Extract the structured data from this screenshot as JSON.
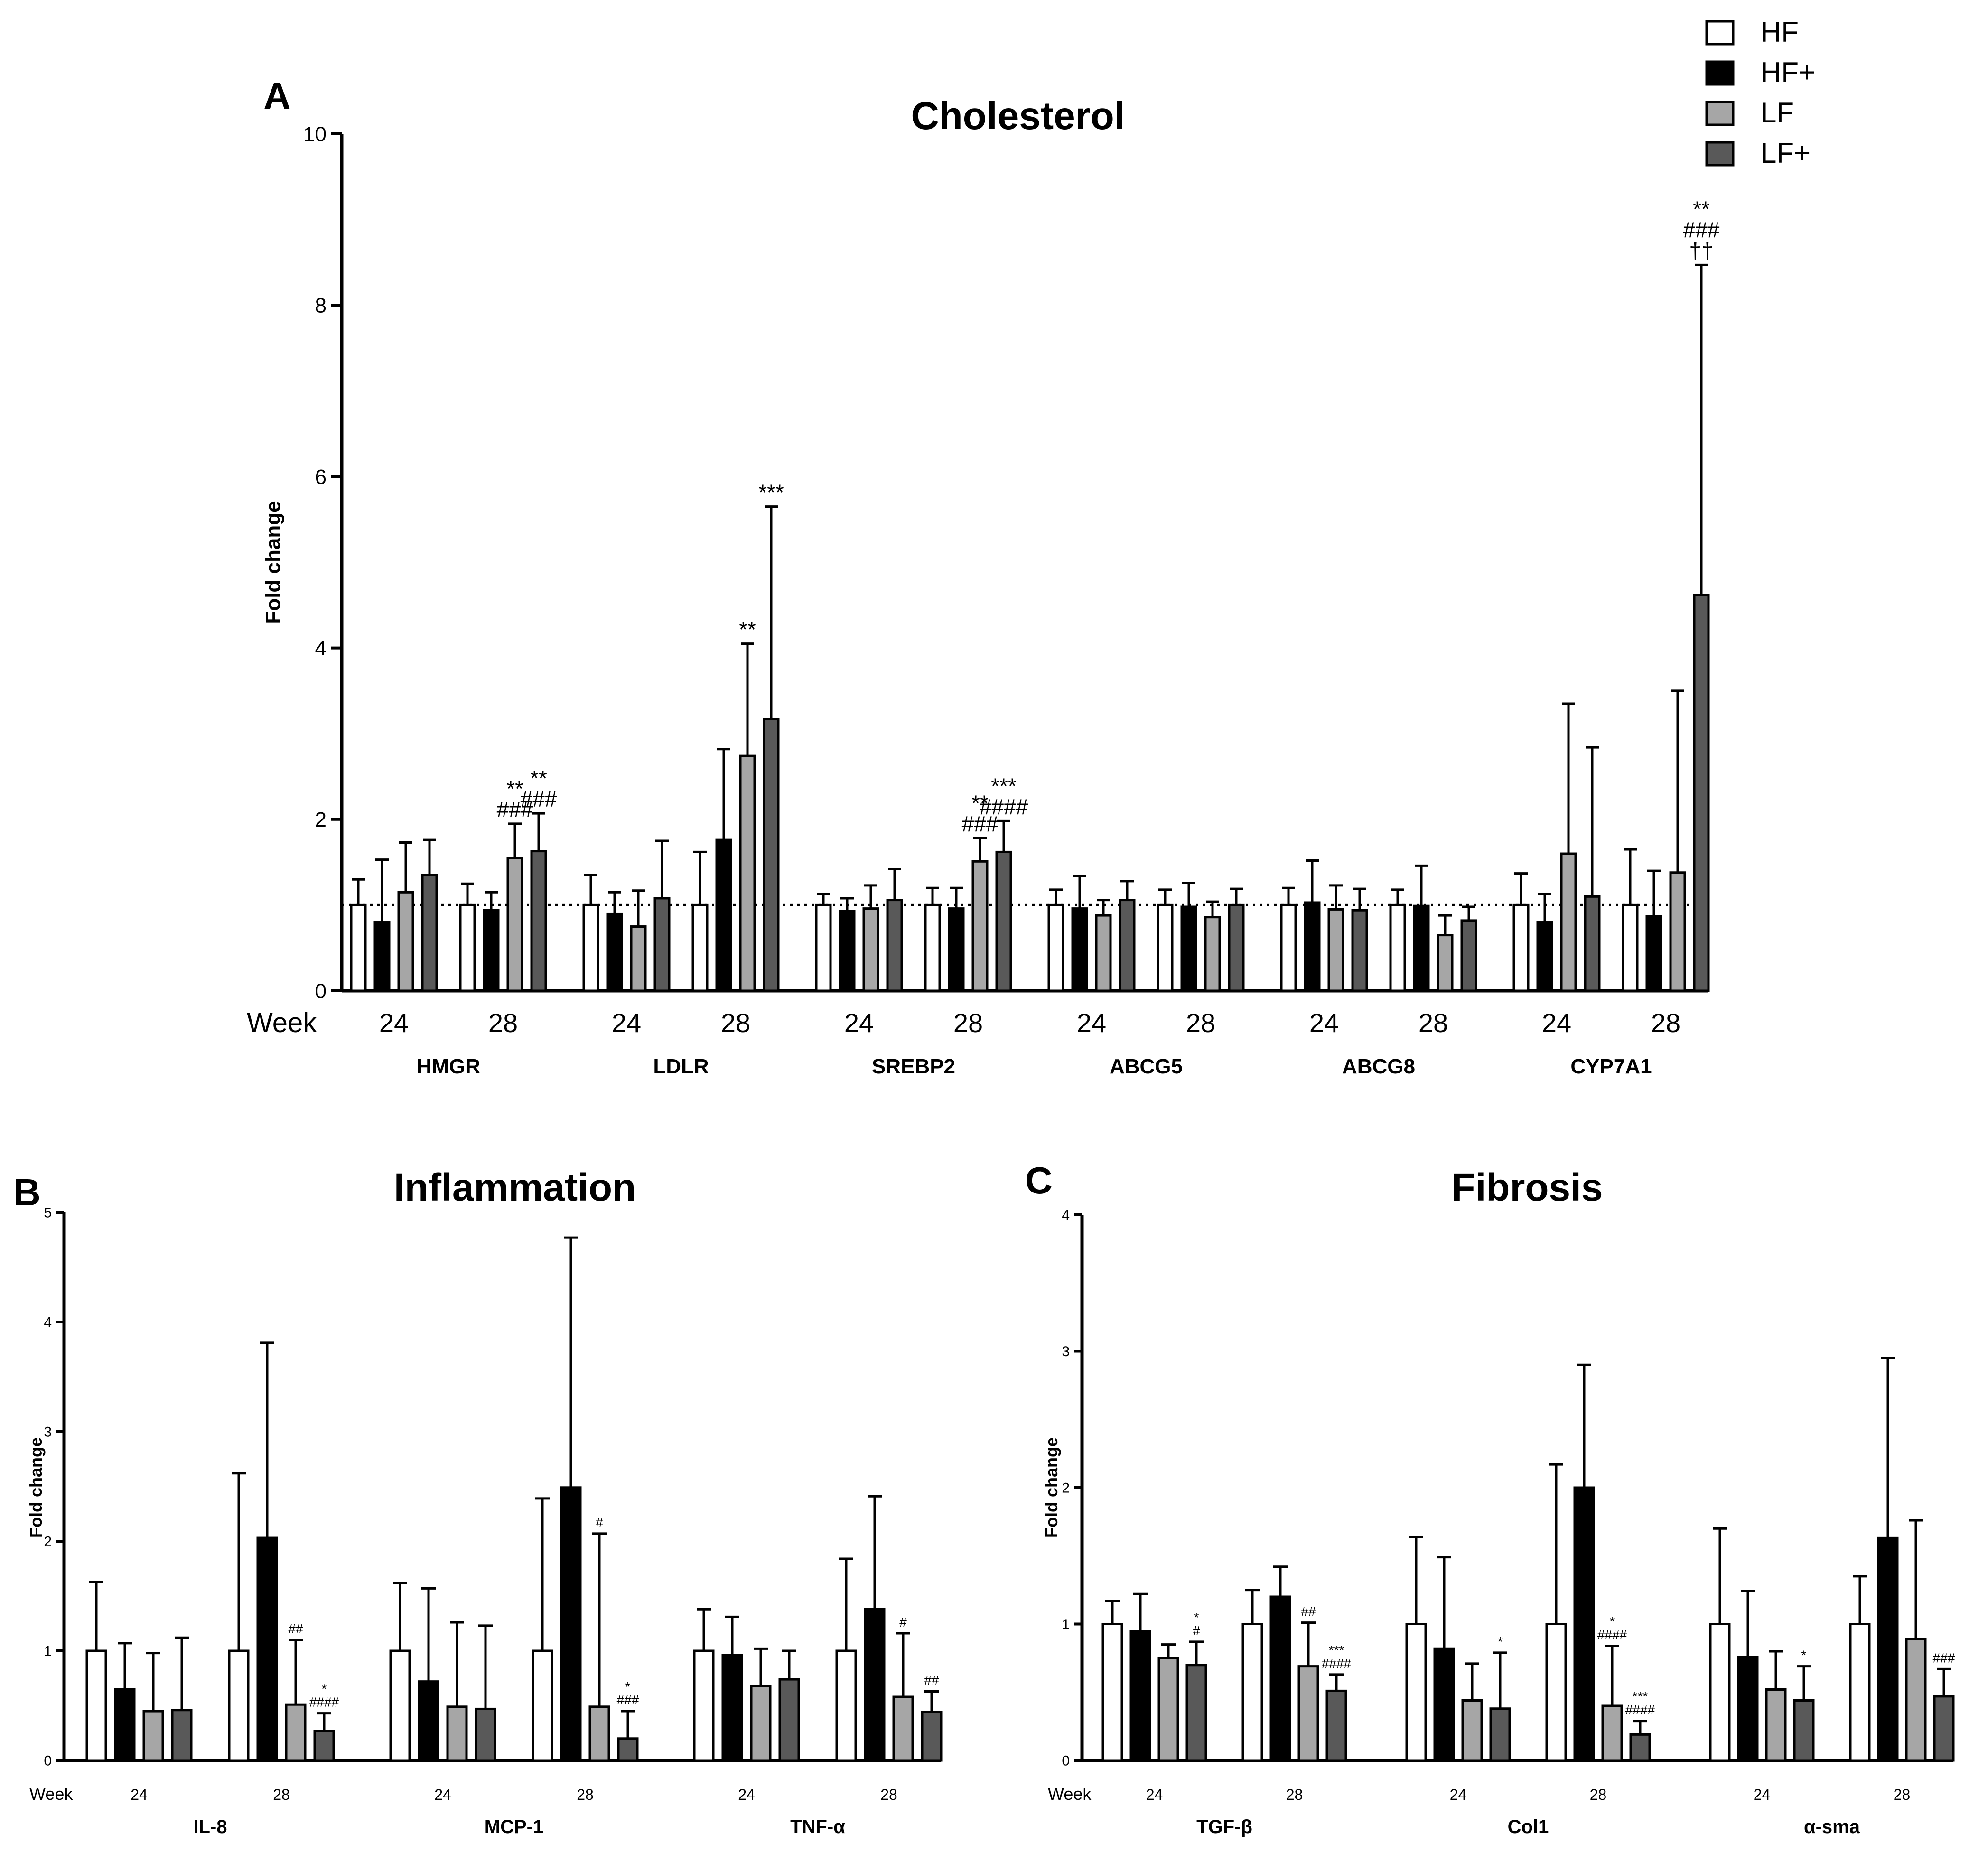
{
  "colors": {
    "HF": "#ffffff",
    "HF+": "#000000",
    "LF": "#a6a6a6",
    "LF+": "#595959"
  },
  "legend": [
    "HF",
    "HF+",
    "LF",
    "LF+"
  ],
  "chart_data": [
    {
      "panel": "A",
      "type": "bar",
      "title": "Cholesterol",
      "ylabel": "Fold change",
      "xlabel": "Week",
      "ylim": [
        0,
        10
      ],
      "yticks": [
        0,
        2,
        4,
        6,
        8,
        10
      ],
      "reference_line": 1,
      "series_names": [
        "HF",
        "HF+",
        "LF",
        "LF+"
      ],
      "genes": [
        {
          "name": "HMGR",
          "groups": [
            {
              "week": "24",
              "values": [
                1.0,
                0.8,
                1.15,
                1.35
              ],
              "errors": [
                1.3,
                1.53,
                1.73,
                1.76
              ],
              "sig": [
                "",
                "",
                "",
                ""
              ]
            },
            {
              "week": "28",
              "values": [
                1.0,
                0.94,
                1.55,
                1.63
              ],
              "errors": [
                1.25,
                1.15,
                1.95,
                2.07
              ],
              "sig": [
                "",
                "",
                "**\n###",
                "**\n###"
              ]
            }
          ]
        },
        {
          "name": "LDLR",
          "groups": [
            {
              "week": "24",
              "values": [
                1.0,
                0.9,
                0.75,
                1.08
              ],
              "errors": [
                1.35,
                1.15,
                1.17,
                1.75
              ],
              "sig": [
                "",
                "",
                "",
                ""
              ]
            },
            {
              "week": "28",
              "values": [
                1.0,
                1.76,
                2.74,
                3.17
              ],
              "errors": [
                1.62,
                2.82,
                4.05,
                5.65
              ],
              "sig": [
                "",
                "",
                "**",
                "***"
              ]
            }
          ]
        },
        {
          "name": "SREBP2",
          "groups": [
            {
              "week": "24",
              "values": [
                1.0,
                0.93,
                0.96,
                1.06
              ],
              "errors": [
                1.13,
                1.08,
                1.23,
                1.42
              ],
              "sig": [
                "",
                "",
                "",
                ""
              ]
            },
            {
              "week": "28",
              "values": [
                1.0,
                0.96,
                1.51,
                1.62
              ],
              "errors": [
                1.2,
                1.2,
                1.78,
                1.98
              ],
              "sig": [
                "",
                "",
                "**\n###",
                "***\n####"
              ]
            }
          ]
        },
        {
          "name": "ABCG5",
          "groups": [
            {
              "week": "24",
              "values": [
                1.0,
                0.96,
                0.88,
                1.06
              ],
              "errors": [
                1.18,
                1.34,
                1.06,
                1.28
              ],
              "sig": [
                "",
                "",
                "",
                ""
              ]
            },
            {
              "week": "28",
              "values": [
                1.0,
                0.98,
                0.86,
                1.0
              ],
              "errors": [
                1.18,
                1.26,
                1.04,
                1.19
              ],
              "sig": [
                "",
                "",
                "",
                ""
              ]
            }
          ]
        },
        {
          "name": "ABCG8",
          "groups": [
            {
              "week": "24",
              "values": [
                1.0,
                1.03,
                0.95,
                0.94
              ],
              "errors": [
                1.2,
                1.52,
                1.23,
                1.19
              ],
              "sig": [
                "",
                "",
                "",
                ""
              ]
            },
            {
              "week": "28",
              "values": [
                1.0,
                0.99,
                0.65,
                0.82
              ],
              "errors": [
                1.18,
                1.46,
                0.88,
                0.98
              ],
              "sig": [
                "",
                "",
                "",
                ""
              ]
            }
          ]
        },
        {
          "name": "CYP7A1",
          "groups": [
            {
              "week": "24",
              "values": [
                1.0,
                0.8,
                1.6,
                1.1
              ],
              "errors": [
                1.37,
                1.13,
                3.35,
                2.84
              ],
              "sig": [
                "",
                "",
                "",
                ""
              ]
            },
            {
              "week": "28",
              "values": [
                1.0,
                0.87,
                1.38,
                4.62
              ],
              "errors": [
                1.65,
                1.4,
                3.5,
                8.47
              ],
              "sig": [
                "",
                "",
                "",
                "**\n###\n††"
              ]
            }
          ]
        }
      ]
    },
    {
      "panel": "B",
      "type": "bar",
      "title": "Inflammation",
      "ylabel": "Fold change",
      "xlabel": "Week",
      "ylim": [
        0,
        5
      ],
      "yticks": [
        0,
        1,
        2,
        3,
        4,
        5
      ],
      "series_names": [
        "HF",
        "HF+",
        "LF",
        "LF+"
      ],
      "genes": [
        {
          "name": "IL-8",
          "groups": [
            {
              "week": "24",
              "values": [
                1.0,
                0.65,
                0.45,
                0.46
              ],
              "errors": [
                1.63,
                1.07,
                0.98,
                1.12
              ],
              "sig": [
                "",
                "",
                "",
                ""
              ]
            },
            {
              "week": "28",
              "values": [
                1.0,
                2.03,
                0.51,
                0.27
              ],
              "errors": [
                2.62,
                3.81,
                1.1,
                0.43
              ],
              "sig": [
                "",
                "",
                "##",
                "*\n####"
              ]
            }
          ]
        },
        {
          "name": "MCP-1",
          "groups": [
            {
              "week": "24",
              "values": [
                1.0,
                0.72,
                0.49,
                0.47
              ],
              "errors": [
                1.62,
                1.57,
                1.26,
                1.23
              ],
              "sig": [
                "",
                "",
                "",
                ""
              ]
            },
            {
              "week": "28",
              "values": [
                1.0,
                2.49,
                0.49,
                0.2
              ],
              "errors": [
                2.39,
                4.77,
                2.07,
                0.45
              ],
              "sig": [
                "",
                "",
                "#",
                "*\n###"
              ]
            }
          ]
        },
        {
          "name": "TNF-α",
          "groups": [
            {
              "week": "24",
              "values": [
                1.0,
                0.96,
                0.68,
                0.74
              ],
              "errors": [
                1.38,
                1.31,
                1.02,
                1.0
              ],
              "sig": [
                "",
                "",
                "",
                ""
              ]
            },
            {
              "week": "28",
              "values": [
                1.0,
                1.38,
                0.58,
                0.44
              ],
              "errors": [
                1.84,
                2.41,
                1.16,
                0.63
              ],
              "sig": [
                "",
                "",
                "#",
                "##"
              ]
            }
          ]
        }
      ]
    },
    {
      "panel": "C",
      "type": "bar",
      "title": "Fibrosis",
      "ylabel": "Fold change",
      "xlabel": "Week",
      "ylim": [
        0,
        4
      ],
      "yticks": [
        0,
        1,
        2,
        3,
        4
      ],
      "series_names": [
        "HF",
        "HF+",
        "LF",
        "LF+"
      ],
      "genes": [
        {
          "name": "TGF-β",
          "groups": [
            {
              "week": "24",
              "values": [
                1.0,
                0.95,
                0.75,
                0.7
              ],
              "errors": [
                1.17,
                1.22,
                0.85,
                0.87
              ],
              "sig": [
                "",
                "",
                "",
                "*\n#"
              ]
            },
            {
              "week": "28",
              "values": [
                1.0,
                1.2,
                0.69,
                0.51
              ],
              "errors": [
                1.25,
                1.42,
                1.01,
                0.63
              ],
              "sig": [
                "",
                "",
                "##",
                "***\n####"
              ]
            }
          ]
        },
        {
          "name": "Col1",
          "groups": [
            {
              "week": "24",
              "values": [
                1.0,
                0.82,
                0.44,
                0.38
              ],
              "errors": [
                1.64,
                1.49,
                0.71,
                0.79
              ],
              "sig": [
                "",
                "",
                "",
                "*"
              ]
            },
            {
              "week": "28",
              "values": [
                1.0,
                2.0,
                0.4,
                0.19
              ],
              "errors": [
                2.17,
                2.9,
                0.84,
                0.29
              ],
              "sig": [
                "",
                "",
                "*\n####",
                "***\n####"
              ]
            }
          ]
        },
        {
          "name": "α-sma",
          "groups": [
            {
              "week": "24",
              "values": [
                1.0,
                0.76,
                0.52,
                0.44
              ],
              "errors": [
                1.7,
                1.24,
                0.8,
                0.69
              ],
              "sig": [
                "",
                "",
                "",
                "*"
              ]
            },
            {
              "week": "28",
              "values": [
                1.0,
                1.63,
                0.89,
                0.47
              ],
              "errors": [
                1.35,
                2.95,
                1.76,
                0.67
              ],
              "sig": [
                "",
                "",
                "",
                "###"
              ]
            }
          ]
        }
      ]
    }
  ]
}
